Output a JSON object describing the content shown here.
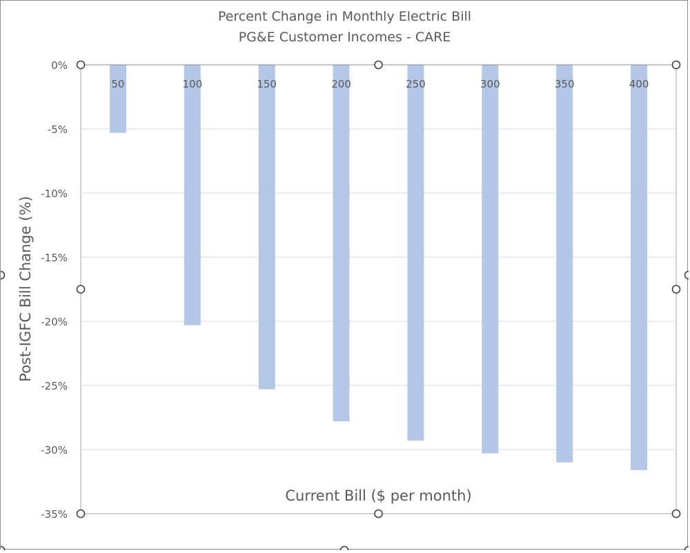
{
  "chart_data": {
    "type": "bar",
    "title_lines": [
      "Percent Change in Monthly Electric Bill",
      "PG&E Customer Incomes - CARE"
    ],
    "xlabel": "Current Bill ($ per month)",
    "ylabel": "Post-IGFC Bill Change (%)",
    "categories": [
      "50",
      "100",
      "150",
      "200",
      "250",
      "300",
      "350",
      "400"
    ],
    "values": [
      -5.3,
      -20.3,
      -25.3,
      -27.8,
      -29.3,
      -30.3,
      -31.0,
      -31.6
    ],
    "y_ticks": [
      "0%",
      "-5%",
      "-10%",
      "-15%",
      "-20%",
      "-25%",
      "-30%",
      "-35%"
    ],
    "y_tick_values": [
      0,
      -5,
      -10,
      -15,
      -20,
      -25,
      -30,
      -35
    ],
    "ylim": [
      -35,
      0
    ],
    "grid": true,
    "bar_color": "#b4c7e7",
    "gridline_color": "#d9d9d9",
    "text_color": "#595959"
  }
}
